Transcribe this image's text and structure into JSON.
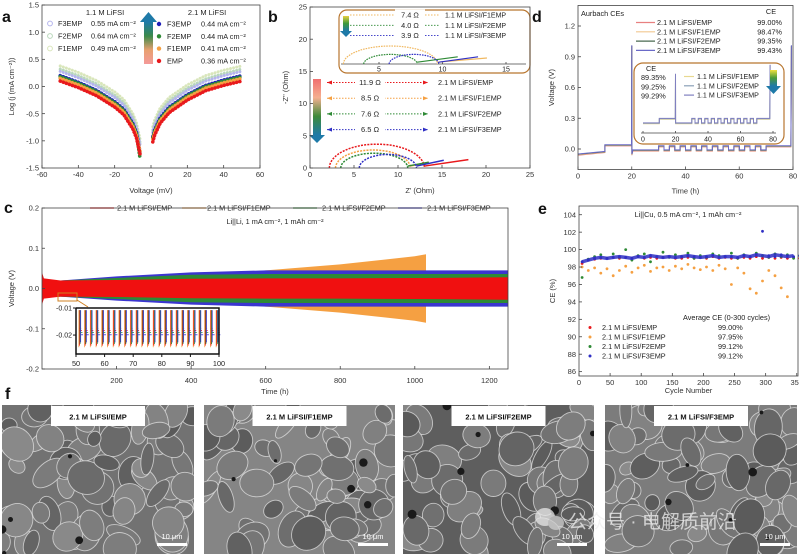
{
  "figure": {
    "panel_labels": [
      "a",
      "b",
      "c",
      "d",
      "e",
      "f"
    ],
    "colors": {
      "emp": "#e8191c",
      "f1emp": "#f5a042",
      "f2emp": "#2e8a35",
      "f3emp": "#2f2fc4",
      "inset_border": "#b8762f"
    }
  },
  "chart_data": [
    {
      "type": "scatter",
      "xlabel": "Voltage (mV)",
      "ylabel": "Log (j (mA cm⁻²))",
      "xlim": [
        -60,
        60
      ],
      "ylim": [
        -1.5,
        1.5
      ],
      "xticks": [
        "-60",
        "-40",
        "-20",
        "0",
        "20",
        "40",
        "60"
      ],
      "yticks": [
        "-1.5",
        "-1.0",
        "-0.5",
        "0.0",
        "0.5",
        "1.0",
        "1.5"
      ],
      "group_labels": [
        "1.1 M LiFSI",
        "2.1 M LiFSI"
      ],
      "x": [
        -50,
        -40,
        -30,
        -20,
        -15,
        -10,
        -8,
        -6,
        1,
        2,
        5,
        10,
        20,
        30,
        40,
        50
      ],
      "series": [
        {
          "name": "F3EMP",
          "group": 0,
          "value": "0.55 mA cm⁻²",
          "color": "#b4b4ec",
          "y": [
            0.28,
            0.16,
            0.01,
            -0.2,
            -0.34,
            -0.6,
            -0.77,
            -1.07,
            -0.84,
            -0.72,
            -0.5,
            -0.3,
            -0.07,
            0.1,
            0.2,
            0.28
          ]
        },
        {
          "name": "F2EMP",
          "group": 0,
          "value": "0.64 mA cm⁻²",
          "color": "#b9d7bb",
          "y": [
            0.32,
            0.2,
            0.05,
            -0.16,
            -0.3,
            -0.56,
            -0.73,
            -1.03,
            -0.8,
            -0.68,
            -0.46,
            -0.26,
            -0.03,
            0.14,
            0.24,
            0.32
          ]
        },
        {
          "name": "F1EMP",
          "group": 0,
          "value": "0.49 mA cm⁻²",
          "color": "#d9e6bb",
          "y": [
            0.38,
            0.26,
            0.11,
            -0.1,
            -0.24,
            -0.5,
            -0.67,
            -0.97,
            -0.74,
            -0.62,
            -0.4,
            -0.2,
            0.03,
            0.2,
            0.3,
            0.38
          ]
        },
        {
          "name": "F3EMP",
          "group": 1,
          "value": "0.44 mA cm⁻²",
          "color": "#1f1fb8",
          "y": [
            0.2,
            0.08,
            -0.07,
            -0.28,
            -0.42,
            -0.68,
            -0.85,
            -1.22,
            -0.92,
            -0.8,
            -0.58,
            -0.38,
            -0.15,
            0.02,
            0.12,
            0.2
          ]
        },
        {
          "name": "F2EMP",
          "group": 1,
          "value": "0.44 mA cm⁻²",
          "color": "#2e8a35",
          "y": [
            0.18,
            0.06,
            -0.09,
            -0.3,
            -0.44,
            -0.7,
            -0.87,
            -1.33,
            -0.94,
            -0.82,
            -0.6,
            -0.4,
            -0.17,
            0.0,
            0.1,
            0.18
          ]
        },
        {
          "name": "F1EMP",
          "group": 1,
          "value": "0.41 mA cm⁻²",
          "color": "#f5a042",
          "y": [
            0.15,
            0.03,
            -0.12,
            -0.33,
            -0.47,
            -0.73,
            -0.9,
            -1.2,
            -0.97,
            -0.85,
            -0.63,
            -0.43,
            -0.2,
            -0.03,
            0.07,
            0.15
          ]
        },
        {
          "name": "EMP",
          "group": 1,
          "value": "0.36 mA cm⁻²",
          "color": "#e8191c",
          "y": [
            0.1,
            -0.02,
            -0.17,
            -0.38,
            -0.52,
            -0.78,
            -0.95,
            -1.25,
            -1.02,
            -0.9,
            -0.68,
            -0.48,
            -0.25,
            -0.08,
            0.02,
            0.1
          ]
        }
      ]
    },
    {
      "type": "line",
      "xlabel": "Z' (Ohm)",
      "ylabel": "-Z'' (Ohm)",
      "xlim": [
        0,
        25
      ],
      "ylim": [
        0,
        25
      ],
      "xticks": [
        "0",
        "5",
        "10",
        "15",
        "20",
        "25"
      ],
      "yticks": [
        "0",
        "5",
        "10",
        "15",
        "20",
        "25"
      ],
      "series": [
        {
          "name": "2.1 M LiFSI/EMP",
          "resistance": "11.9 Ω",
          "color": "#e8191c",
          "z_start": 2.2,
          "arc_end": 13.0,
          "arc_peak": 3.7,
          "tail_end": [
            18.0,
            1.3
          ]
        },
        {
          "name": "2.1 M LiFSI/F1EMP",
          "resistance": "8.5 Ω",
          "color": "#f5a042",
          "z_start": 2.9,
          "arc_end": 11.4,
          "arc_peak": 2.8,
          "tail_end": [
            13.5,
            0.9
          ]
        },
        {
          "name": "2.1 M LiFSI/F2EMP",
          "resistance": "7.6 Ω",
          "color": "#2e8a35",
          "z_start": 3.5,
          "arc_end": 11.1,
          "arc_peak": 2.3,
          "tail_end": [
            13.5,
            0.9
          ]
        },
        {
          "name": "2.1 M LiFSI/F3EMP",
          "resistance": "6.5 Ω",
          "color": "#2f2fc4",
          "z_start": 5.6,
          "arc_end": 12.1,
          "arc_peak": 2.1,
          "tail_end": [
            15.2,
            1.2
          ]
        }
      ],
      "inset": {
        "xticks": [
          "5",
          "10",
          "15"
        ],
        "series": [
          {
            "name": "1.1 M LiFSI/F1EMP",
            "resistance": "7.4 Ω",
            "color": "#f0b860",
            "z_start": 2.2,
            "arc_end": 9.6,
            "arc_peak": 1.5,
            "tail_end": [
              13.5,
              0.5
            ]
          },
          {
            "name": "1.1 M LiFSI/F2EMP",
            "resistance": "4.0 Ω",
            "color": "#2e8a35",
            "z_start": 3.8,
            "arc_end": 8.0,
            "arc_peak": 0.8,
            "tail_end": [
              11.2,
              0.6
            ]
          },
          {
            "name": "1.1 M LiFSI/F3EMP",
            "resistance": "3.9 Ω",
            "color": "#2f2fc4",
            "z_start": 5.8,
            "arc_end": 9.7,
            "arc_peak": 0.8,
            "tail_end": [
              12.8,
              0.6
            ]
          }
        ]
      }
    },
    {
      "type": "area",
      "xlabel": "Time (h)",
      "ylabel": "Voltage (V)",
      "xlim": [
        0,
        1250
      ],
      "ylim": [
        -0.2,
        0.2
      ],
      "xticks": [
        "200",
        "400",
        "600",
        "800",
        "1000",
        "1200"
      ],
      "yticks": [
        "-0.2",
        "-0.1",
        "0.0",
        "0.1",
        "0.2"
      ],
      "annotation": "Li||Li, 1 mA cm⁻², 1 mAh cm⁻²",
      "series": [
        {
          "name": "2.1 M LiFSI/EMP",
          "color": "#f01010",
          "t": [
            0,
            5,
            50,
            200,
            400,
            600,
            800,
            1000,
            1030,
            1250
          ],
          "amplitude": [
            0.04,
            0.025,
            0.02,
            0.021,
            0.024,
            0.025,
            0.025,
            0.026,
            0.026,
            0.028
          ]
        },
        {
          "name": "2.1 M LiFSI/F1EMP",
          "color": "#f5a042",
          "t": [
            0,
            5,
            50,
            200,
            400,
            600,
            800,
            1000,
            1030
          ],
          "amplitude": [
            0.03,
            0.02,
            0.02,
            0.022,
            0.03,
            0.045,
            0.06,
            0.08,
            0.085
          ]
        },
        {
          "name": "2.1 M LiFSI/F2EMP",
          "color": "#2e8a35",
          "t": [
            0,
            5,
            50,
            200,
            400,
            600,
            800,
            1000,
            1030,
            1250
          ],
          "amplitude": [
            0.03,
            0.02,
            0.02,
            0.026,
            0.034,
            0.036,
            0.036,
            0.036,
            0.036,
            0.036
          ]
        },
        {
          "name": "2.1 M LiFSI/F3EMP",
          "color": "#3b35d0",
          "t": [
            0,
            5,
            50,
            200,
            400,
            600,
            800,
            1000,
            1030,
            1250
          ],
          "amplitude": [
            0.03,
            0.02,
            0.02,
            0.03,
            0.04,
            0.045,
            0.045,
            0.045,
            0.045,
            0.045
          ]
        }
      ],
      "inset": {
        "xlim": [
          50,
          100
        ],
        "ylim": [
          -0.027,
          -0.01
        ],
        "xticks": [
          "50",
          "60",
          "70",
          "80",
          "90",
          "100"
        ],
        "yticks": [
          "-0.01",
          "-0.02"
        ],
        "cycle_period_h": 2
      }
    },
    {
      "type": "line",
      "xlabel": "Time (h)",
      "ylabel": "Voltage (V)",
      "xlim": [
        0,
        80
      ],
      "ylim": [
        -0.2,
        1.4
      ],
      "xticks": [
        "0",
        "20",
        "40",
        "60",
        "80"
      ],
      "yticks": [
        "0.0",
        "0.3",
        "0.6",
        "0.9",
        "1.2"
      ],
      "annotation": "Aurbach CEs",
      "ce_header": "CE",
      "series": [
        {
          "name": "2.1 M LiFSI/EMP",
          "ce": "99.00%",
          "color": "#e88080"
        },
        {
          "name": "2.1 M LiFSI/F1EMP",
          "ce": "98.47%",
          "color": "#f2c890"
        },
        {
          "name": "2.1 M LiFSI/F2EMP",
          "ce": "99.35%",
          "color": "#4a6a50"
        },
        {
          "name": "2.1 M LiFSI/F3EMP",
          "ce": "99.43%",
          "color": "#6a6ac8"
        }
      ],
      "profile": {
        "steps": [
          [
            0,
            -0.06
          ],
          [
            10,
            -0.035
          ],
          [
            10,
            0.03
          ],
          [
            19.9,
            0.03
          ],
          [
            20,
            1.0
          ],
          [
            20.05,
            -0.06
          ],
          [
            20.4,
            -0.02
          ],
          [
            30,
            -0.02
          ]
        ],
        "cycling": {
          "start": 30,
          "end": 70,
          "period_h": 4,
          "v_high": 0.02,
          "v_low": -0.02
        },
        "tail": [
          [
            70,
            0.02
          ],
          [
            79.2,
            0.02
          ],
          [
            79.4,
            1.0
          ]
        ]
      },
      "inset": {
        "xticks": [
          "0",
          "20",
          "40",
          "60",
          "80"
        ],
        "ce_header": "CE",
        "series": [
          {
            "name": "1.1 M LiFSI/F1EMP",
            "ce": "89.35%",
            "color": "#e8d890"
          },
          {
            "name": "1.1 M LiFSI/F2EMP",
            "ce": "99.25%",
            "color": "#8aa0b8"
          },
          {
            "name": "1.1 M LiFSI/F3EMP",
            "ce": "99.29%",
            "color": "#8080c0"
          }
        ]
      }
    },
    {
      "type": "scatter",
      "xlabel": "Cycle Number",
      "ylabel": "CE (%)",
      "xlim": [
        0,
        352
      ],
      "ylim": [
        85.5,
        105
      ],
      "xticks": [
        "0",
        "50",
        "100",
        "150",
        "200",
        "250",
        "300",
        "350"
      ],
      "yticks": [
        "86",
        "88",
        "90",
        "92",
        "94",
        "96",
        "98",
        "100",
        "102",
        "104"
      ],
      "annotation": "Li||Cu, 0.5 mA cm⁻², 1 mAh cm⁻²",
      "legend_title": "Average CE (0-300 cycles)",
      "cycles": [
        5,
        15,
        25,
        35,
        45,
        55,
        65,
        75,
        85,
        95,
        105,
        115,
        125,
        135,
        145,
        155,
        165,
        175,
        185,
        195,
        205,
        215,
        225,
        235,
        245,
        255,
        265,
        275,
        285,
        295,
        305,
        315,
        325,
        335,
        345,
        355
      ],
      "series": [
        {
          "name": "2.1 M LiFSI/EMP",
          "avg_ce": "99.00%",
          "color": "#e8191c",
          "ce": [
            98.4,
            98.8,
            98.9,
            99.0,
            99.0,
            99.1,
            99.0,
            99.1,
            99.0,
            99.2,
            99.0,
            99.1,
            99.0,
            99.1,
            99.2,
            99.0,
            99.0,
            99.1,
            99.0,
            99.1,
            99.0,
            99.2,
            99.0,
            99.1,
            99.0,
            99.0,
            99.1,
            99.0,
            99.2,
            99.0,
            99.1,
            99.0,
            99.1,
            99.0,
            99.1,
            99.0
          ]
        },
        {
          "name": "2.1 M LiFSI/F1EMP",
          "avg_ce": "97.95%",
          "color": "#f5a042",
          "ce": [
            98.0,
            97.6,
            97.9,
            97.3,
            97.8,
            97.0,
            97.6,
            98.1,
            97.4,
            97.9,
            98.2,
            97.5,
            97.9,
            98.0,
            97.6,
            98.1,
            97.8,
            98.3,
            97.9,
            97.7,
            98.0,
            97.6,
            98.2,
            97.8,
            96.0,
            97.9,
            97.3,
            95.5,
            95.0,
            96.4,
            97.6,
            97.0,
            95.6,
            94.6
          ]
        },
        {
          "name": "2.1 M LiFSI/F2EMP",
          "avg_ce": "99.12%",
          "color": "#2e8a35",
          "ce": [
            96.8,
            98.9,
            99.2,
            99.4,
            99.0,
            99.5,
            99.1,
            100.0,
            98.8,
            99.3,
            99.5,
            98.6,
            99.2,
            99.7,
            99.1,
            99.4,
            99.2,
            99.6,
            99.0,
            99.3,
            99.1,
            99.5,
            99.3,
            99.2,
            99.6,
            99.0,
            99.4,
            99.2,
            99.6,
            99.3,
            99.1,
            99.5,
            99.2,
            99.4,
            99.0,
            99.3
          ]
        },
        {
          "name": "2.1 M LiFSI/F3EMP",
          "avg_ce": "99.12%",
          "color": "#2f2fc4",
          "ce": [
            98.6,
            98.8,
            99.0,
            99.1,
            99.0,
            99.1,
            99.2,
            99.1,
            99.0,
            99.2,
            99.1,
            99.3,
            99.2,
            99.1,
            99.2,
            99.1,
            99.2,
            99.3,
            99.2,
            99.1,
            99.2,
            99.3,
            99.1,
            99.2,
            99.2,
            99.1,
            99.3,
            99.2,
            99.4,
            102.1,
            99.3,
            99.2,
            99.4,
            99.3,
            99.2,
            99.3
          ]
        }
      ]
    }
  ],
  "sem_images": {
    "images": [
      {
        "title": "2.1 M LiFSI/EMP",
        "scale_bar": "10 μm"
      },
      {
        "title": "2.1 M LiFSI/F1EMP",
        "scale_bar": "10 μm"
      },
      {
        "title": "2.1 M LiFSI/F2EMP",
        "scale_bar": "10 μm"
      },
      {
        "title": "2.1 M LiFSI/F3EMP",
        "scale_bar": "10 μm"
      }
    ],
    "watermark": "公众号 · 电解质前沿"
  }
}
